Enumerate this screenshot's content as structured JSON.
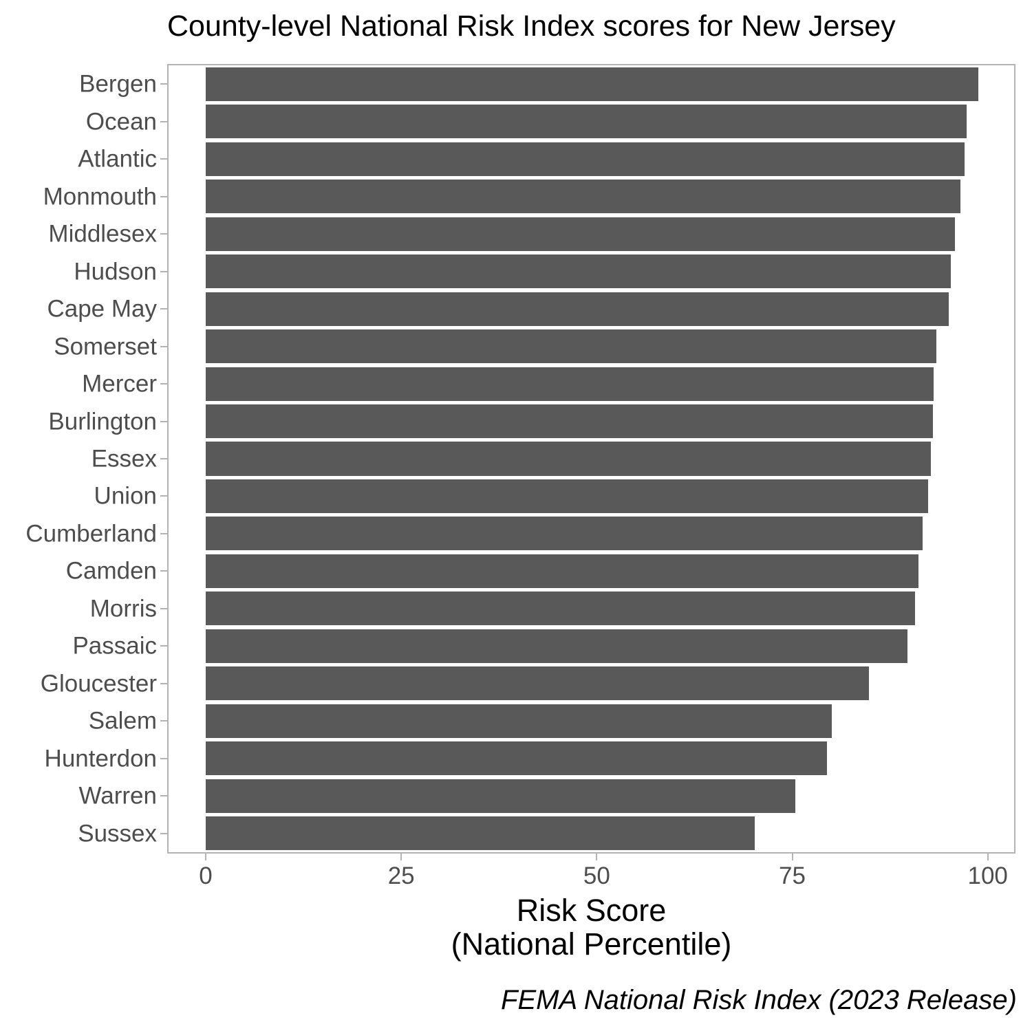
{
  "title": "County-level National Risk Index scores for New Jersey",
  "x_axis": {
    "title_line1": "Risk Score",
    "title_line2": "(National Percentile)",
    "tick_labels": [
      "0",
      "25",
      "50",
      "75",
      "100"
    ],
    "tick_values": [
      0,
      25,
      50,
      75,
      100
    ]
  },
  "caption": "FEMA National Risk Index (2023 Release)",
  "colors": {
    "bar_fill": "#595959",
    "axis_text": "#4d4d4d",
    "panel_border": "#b3b3b3",
    "tick_mark": "#b3b3b3",
    "title_text": "#000000"
  },
  "chart_data": {
    "type": "bar",
    "orientation": "horizontal",
    "title": "County-level National Risk Index scores for New Jersey",
    "xlabel": "Risk Score (National Percentile)",
    "ylabel": "",
    "xlim": [
      0,
      100
    ],
    "grid": false,
    "legend": "none",
    "source_caption": "FEMA National Risk Index (2023 Release)",
    "categories": [
      "Bergen",
      "Ocean",
      "Atlantic",
      "Monmouth",
      "Middlesex",
      "Hudson",
      "Cape May",
      "Somerset",
      "Mercer",
      "Burlington",
      "Essex",
      "Union",
      "Cumberland",
      "Camden",
      "Morris",
      "Passaic",
      "Gloucester",
      "Salem",
      "Hunterdon",
      "Warren",
      "Sussex"
    ],
    "values": [
      98.8,
      97.3,
      97.0,
      96.5,
      95.8,
      95.3,
      95.0,
      93.4,
      93.1,
      93.0,
      92.7,
      92.4,
      91.7,
      91.1,
      90.7,
      89.7,
      84.8,
      80.1,
      79.4,
      75.4,
      70.2
    ]
  }
}
